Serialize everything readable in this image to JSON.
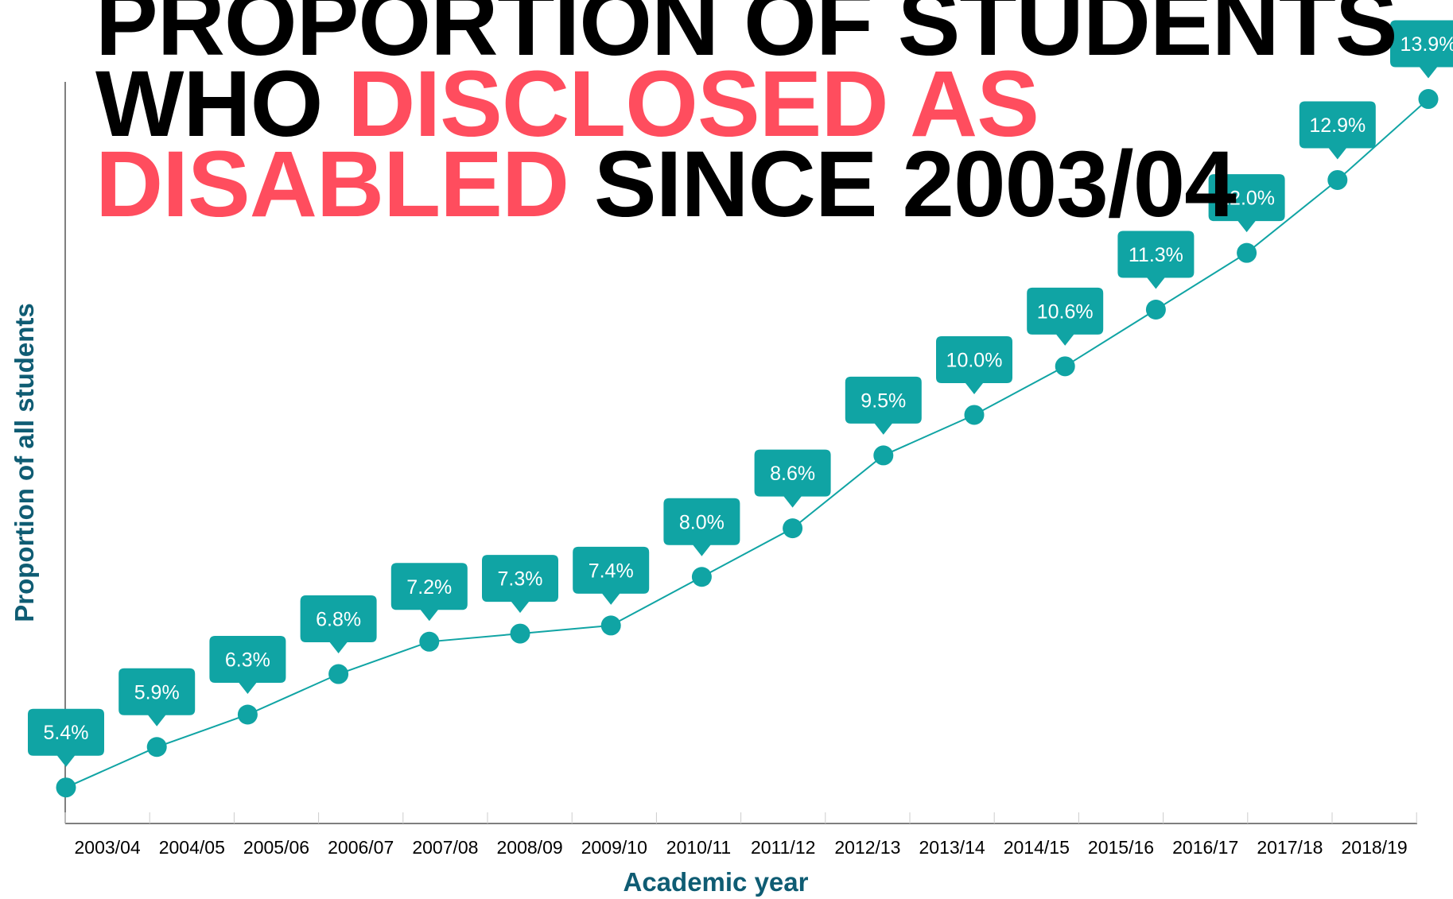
{
  "title": {
    "line1": "PROPORTION OF STUDENTS",
    "line2_a": "WHO ",
    "line2_b": "DISCLOSED AS",
    "line3_a": "DISABLED",
    "line3_b": " SINCE 2003/04"
  },
  "colors": {
    "accent": "#10a4a4",
    "title_black": "#000000",
    "title_red": "#ff4d5e",
    "axis_title": "#0f5c73"
  },
  "chart_data": {
    "type": "line",
    "xlabel": "Academic year",
    "ylabel": "Proportion of all students",
    "categories": [
      "2003/04",
      "2004/05",
      "2005/06",
      "2006/07",
      "2007/08",
      "2008/09",
      "2009/10",
      "2010/11",
      "2011/12",
      "2012/13",
      "2013/14",
      "2014/15",
      "2015/16",
      "2016/17",
      "2017/18",
      "2018/19"
    ],
    "series": [
      {
        "values": [
          5.4,
          5.9,
          6.3,
          6.8,
          7.2,
          7.3,
          7.4,
          8.0,
          8.6,
          9.5,
          10.0,
          10.6,
          11.3,
          12.0,
          12.9,
          13.9
        ],
        "labels": [
          "5.4%",
          "5.9%",
          "6.3%",
          "6.8%",
          "7.2%",
          "7.3%",
          "7.4%",
          "8.0%",
          "8.6%",
          "9.5%",
          "10.0%",
          "10.6%",
          "11.3%",
          "12.0%",
          "12.9%",
          "13.9%"
        ]
      }
    ],
    "legend": "none",
    "grid": false
  }
}
